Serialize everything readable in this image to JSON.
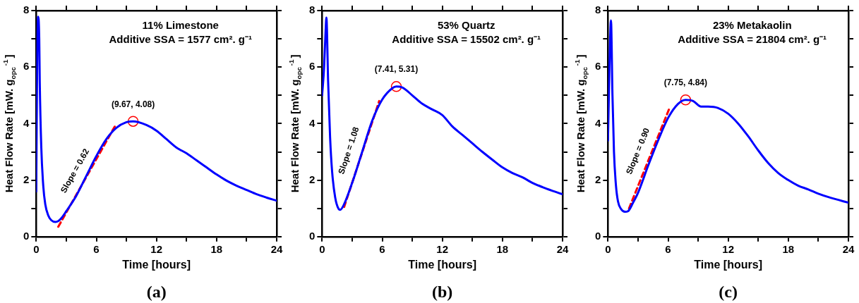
{
  "chart_data": [
    {
      "type": "line",
      "title": "11% Limestone",
      "subtitle": "Additive SSA = 1577 cm². g⁻¹",
      "xlabel": "Time [hours]",
      "ylabel": "Heat Flow Rate [mW. g$_{opc}$$^{-1}$]",
      "x": [
        0,
        0.1,
        0.2,
        0.3,
        0.35,
        0.5,
        0.7,
        0.9,
        1.2,
        1.5,
        1.9,
        2.2,
        2.5,
        3,
        4,
        5,
        6,
        7,
        8,
        9,
        9.67,
        11,
        12,
        13,
        14,
        15,
        16,
        17,
        18,
        19,
        20,
        21,
        22,
        23,
        24
      ],
      "series": [
        {
          "color": "#0000ff",
          "values": [
            1.6,
            6.5,
            7.78,
            7.0,
            5.5,
            3.2,
            1.8,
            1.15,
            0.75,
            0.58,
            0.52,
            0.55,
            0.65,
            0.9,
            1.45,
            2.15,
            2.85,
            3.45,
            3.85,
            4.05,
            4.08,
            3.95,
            3.75,
            3.45,
            3.15,
            2.95,
            2.7,
            2.45,
            2.2,
            1.98,
            1.8,
            1.65,
            1.5,
            1.38,
            1.27
          ]
        },
        {
          "color": "#ff0000",
          "line_style": "dashed",
          "x": [
            2.2,
            8.0
          ],
          "values": [
            0.35,
            4.0
          ]
        },
        {
          "type": "scatter",
          "color": "#ff0000",
          "marker": "circle",
          "x": [
            9.67
          ],
          "values": [
            4.08
          ]
        }
      ],
      "xlim": [
        0,
        24
      ],
      "xticks": [
        0,
        {
          "value": 3,
          "label": null
        },
        6,
        {
          "value": 9,
          "label": null
        },
        12,
        {
          "value": 15,
          "label": null
        },
        18,
        {
          "value": 21,
          "label": null
        },
        24
      ],
      "ylim": [
        0,
        8
      ],
      "yticks": [
        0,
        {
          "value": 1,
          "label": null
        },
        2,
        {
          "value": 3,
          "label": null
        },
        4,
        {
          "value": 5,
          "label": null
        },
        6,
        {
          "value": 7,
          "label": null
        },
        8
      ],
      "marker": "none",
      "annotations": [
        {
          "text": "(9.67, 4.08)",
          "x": 9.67,
          "y": 4.08
        },
        {
          "text": "Slope = 0.62",
          "x": 5,
          "y": 2.1
        },
        "(a)"
      ]
    },
    {
      "type": "line",
      "title": "53% Quartz",
      "subtitle": "Additive SSA = 15502 cm². g⁻¹",
      "xlabel": "Time [hours]",
      "ylabel": "Heat Flow Rate [mW. g$_{opc}$$^{-1}$]",
      "x": [
        0,
        0.2,
        0.35,
        0.43,
        0.6,
        0.8,
        1.0,
        1.3,
        1.65,
        1.8,
        2.2,
        3,
        4,
        5,
        6,
        7,
        7.41,
        8,
        9,
        10,
        11,
        12,
        13,
        14,
        15,
        16,
        17,
        18,
        19,
        20,
        21,
        22,
        23,
        24
      ],
      "series": [
        {
          "color": "#0000ff",
          "values": [
            5.0,
            6.0,
            7.3,
            7.75,
            5.5,
            3.5,
            2.3,
            1.4,
            0.98,
            0.95,
            1.15,
            1.9,
            3.0,
            4.1,
            4.85,
            5.25,
            5.31,
            5.28,
            5.0,
            4.7,
            4.5,
            4.3,
            3.9,
            3.6,
            3.3,
            3.0,
            2.72,
            2.45,
            2.25,
            2.1,
            1.9,
            1.75,
            1.62,
            1.5
          ]
        },
        {
          "color": "#ff0000",
          "line_style": "dashed",
          "x": [
            2.2,
            5.7
          ],
          "values": [
            1.05,
            4.8
          ]
        },
        {
          "type": "scatter",
          "color": "#ff0000",
          "marker": "circle",
          "x": [
            7.41
          ],
          "values": [
            5.31
          ]
        }
      ],
      "xlim": [
        0,
        24
      ],
      "xticks": [
        0,
        {
          "value": 3,
          "label": null
        },
        6,
        {
          "value": 9,
          "label": null
        },
        12,
        {
          "value": 15,
          "label": null
        },
        18,
        {
          "value": 21,
          "label": null
        },
        24
      ],
      "ylim": [
        0,
        8
      ],
      "yticks": [
        0,
        {
          "value": 1,
          "label": null
        },
        2,
        {
          "value": 3,
          "label": null
        },
        4,
        {
          "value": 5,
          "label": null
        },
        6,
        {
          "value": 7,
          "label": null
        },
        8
      ],
      "marker": "none",
      "annotations": [
        {
          "text": "(7.41, 5.31)",
          "x": 7.41,
          "y": 5.31
        },
        {
          "text": "Slope = 1.08",
          "x": 3.9,
          "y": 2.9
        },
        "(b)"
      ]
    },
    {
      "type": "line",
      "title": "23% Metakaolin",
      "subtitle": "Additive SSA = 21804 cm². g⁻¹",
      "xlabel": "Time [hours]",
      "ylabel": "Heat Flow Rate [mW. g$_{opc}$$^{-1}$]",
      "x": [
        0,
        0.15,
        0.3,
        0.45,
        0.6,
        0.8,
        1.0,
        1.3,
        1.7,
        2.0,
        2.5,
        3,
        4,
        5,
        6,
        7,
        7.75,
        8.5,
        9.3,
        10,
        11,
        12,
        13,
        14,
        15,
        16,
        17,
        18,
        19,
        20,
        21,
        22,
        23,
        24
      ],
      "series": [
        {
          "color": "#0000ff",
          "values": [
            3.4,
            6.0,
            7.65,
            5.0,
            3.0,
            1.8,
            1.25,
            0.98,
            0.88,
            0.9,
            1.2,
            1.55,
            2.5,
            3.4,
            4.2,
            4.7,
            4.84,
            4.8,
            4.6,
            4.6,
            4.55,
            4.35,
            4.0,
            3.55,
            3.05,
            2.6,
            2.25,
            2.0,
            1.8,
            1.67,
            1.52,
            1.4,
            1.3,
            1.2
          ]
        },
        {
          "color": "#ff0000",
          "line_style": "dashed",
          "x": [
            2.1,
            6.2
          ],
          "values": [
            1.0,
            4.6
          ]
        },
        {
          "type": "scatter",
          "color": "#ff0000",
          "marker": "circle",
          "x": [
            7.75
          ],
          "values": [
            4.84
          ]
        }
      ],
      "xlim": [
        0,
        24
      ],
      "xticks": [
        0,
        {
          "value": 3,
          "label": null
        },
        6,
        {
          "value": 9,
          "label": null
        },
        12,
        {
          "value": 15,
          "label": null
        },
        18,
        {
          "value": 21,
          "label": null
        },
        24
      ],
      "ylim": [
        0,
        8
      ],
      "yticks": [
        0,
        {
          "value": 1,
          "label": null
        },
        2,
        {
          "value": 3,
          "label": null
        },
        4,
        {
          "value": 5,
          "label": null
        },
        6,
        {
          "value": 7,
          "label": null
        },
        8
      ],
      "marker": "none",
      "annotations": [
        {
          "text": "(7.75, 4.84)",
          "x": 7.75,
          "y": 4.84
        },
        {
          "text": "Slope = 0.90",
          "x": 4.2,
          "y": 2.85
        },
        "(c)"
      ]
    }
  ]
}
